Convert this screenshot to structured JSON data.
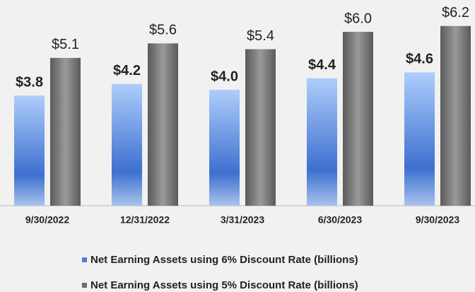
{
  "chart_data": {
    "type": "bar",
    "categories": [
      "9/30/2022",
      "12/31/2022",
      "3/31/2023",
      "6/30/2023",
      "9/30/2023"
    ],
    "series": [
      {
        "name": "Net Earning Assets using 6% Discount Rate (billions)",
        "color": "#4a7fd8",
        "values": [
          3.8,
          4.2,
          4.0,
          4.4,
          4.6
        ],
        "value_labels": [
          "$3.8",
          "$4.2",
          "$4.0",
          "$4.4",
          "$4.6"
        ]
      },
      {
        "name": "Net Earning Assets using 5% Discount Rate (billions)",
        "color": "#6e6e6e",
        "values": [
          5.1,
          5.6,
          5.4,
          6.0,
          6.2
        ],
        "value_labels": [
          "$5.1",
          "$5.6",
          "$5.4",
          "$6.0",
          "$6.2"
        ]
      }
    ]
  }
}
